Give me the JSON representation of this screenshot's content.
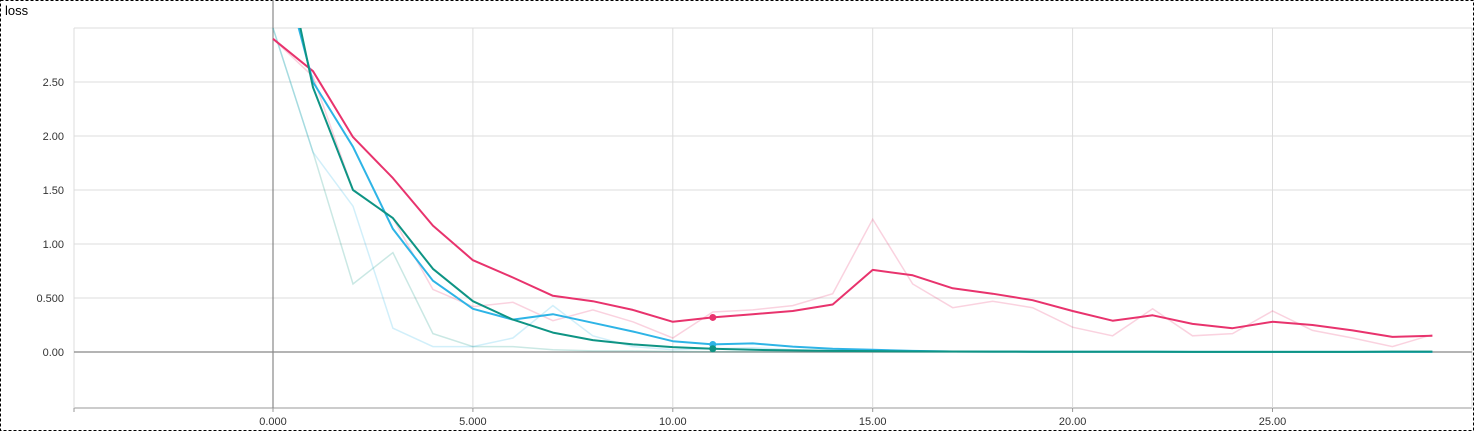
{
  "chart_data": {
    "type": "line",
    "title": "loss",
    "xlabel": "",
    "ylabel": "",
    "xlim": [
      -5,
      30
    ],
    "ylim": [
      -0.5,
      3.0
    ],
    "x_ticks": [
      0,
      5,
      10,
      15,
      20,
      25
    ],
    "x_tick_labels": [
      "0.000",
      "5.000",
      "10.00",
      "15.00",
      "20.00",
      "25.00"
    ],
    "y_ticks": [
      0,
      0.5,
      1.0,
      1.5,
      2.0,
      2.5
    ],
    "y_tick_labels": [
      "0.00",
      "0.500",
      "1.00",
      "1.50",
      "2.00",
      "2.50"
    ],
    "grid": true,
    "hover_x": 11,
    "series": [
      {
        "color": "#e8336d",
        "x": [
          0,
          1,
          2,
          3,
          4,
          5,
          6,
          7,
          8,
          9,
          10,
          11,
          12,
          13,
          14,
          15,
          16,
          17,
          18,
          19,
          20,
          21,
          22,
          23,
          24,
          25,
          26,
          27,
          28,
          29
        ],
        "raw": [
          2.9,
          2.6,
          1.95,
          1.58,
          1.1,
          0.85,
          0.7,
          0.52,
          0.47,
          0.38,
          0.28,
          0.32,
          0.35,
          0.38,
          0.44,
          0.76,
          0.71,
          0.59,
          0.54,
          0.48,
          0.38,
          0.29,
          0.33,
          0.26,
          0.22,
          0.28,
          0.25,
          0.2,
          0.14,
          0.14
        ],
        "smoothed": [
          2.9,
          2.6,
          1.99,
          1.61,
          1.17,
          0.85,
          0.69,
          0.52,
          0.47,
          0.39,
          0.28,
          0.32,
          0.35,
          0.38,
          0.44,
          0.76,
          0.71,
          0.59,
          0.54,
          0.48,
          0.38,
          0.29,
          0.34,
          0.26,
          0.22,
          0.28,
          0.25,
          0.2,
          0.14,
          0.15
        ],
        "values_faded": [
          2.9,
          2.55,
          1.5,
          1.24,
          0.58,
          0.42,
          0.46,
          0.29,
          0.39,
          0.28,
          0.13,
          0.37,
          0.39,
          0.43,
          0.54,
          1.23,
          0.63,
          0.41,
          0.47,
          0.41,
          0.23,
          0.15,
          0.4,
          0.15,
          0.17,
          0.38,
          0.2,
          0.13,
          0.05,
          0.16
        ]
      },
      {
        "color": "#2eb4e6",
        "x": [
          0,
          1,
          2,
          3,
          4,
          5,
          6,
          7,
          8,
          9,
          10,
          11,
          12,
          13,
          14,
          15,
          16,
          17,
          18,
          19,
          20,
          21,
          22,
          23,
          24,
          25,
          26,
          27,
          28,
          29
        ],
        "smoothed": [
          3.9,
          2.5,
          1.9,
          1.14,
          0.66,
          0.4,
          0.3,
          0.35,
          0.27,
          0.19,
          0.1,
          0.07,
          0.08,
          0.05,
          0.03,
          0.02,
          0.01,
          0.005,
          0.004,
          0.003,
          0.002,
          0.002,
          0.002,
          0.001,
          0.001,
          0.001,
          0.001,
          0.001,
          0.001,
          0.001
        ],
        "values_faded": [
          3.0,
          1.85,
          1.35,
          0.22,
          0.05,
          0.05,
          0.13,
          0.43,
          0.15,
          0.05,
          0.02,
          0.03,
          0.04,
          0.02,
          0.01,
          0.01,
          0.005,
          0.003,
          0.002,
          0.002,
          0.001,
          0.001,
          0.001,
          0.001,
          0.001,
          0.001,
          0.001,
          0.001,
          0.001,
          0.001
        ]
      },
      {
        "color": "#0e9484",
        "x": [
          0,
          1,
          2,
          3,
          4,
          5,
          6,
          7,
          8,
          9,
          10,
          11,
          12,
          13,
          14,
          15,
          16,
          17,
          18,
          19,
          20,
          21,
          22,
          23,
          24,
          25,
          26,
          27,
          28,
          29
        ],
        "smoothed": [
          4.2,
          2.45,
          1.5,
          1.24,
          0.77,
          0.47,
          0.3,
          0.18,
          0.11,
          0.07,
          0.045,
          0.03,
          0.02,
          0.015,
          0.01,
          0.008,
          0.006,
          0.005,
          0.004,
          0.003,
          0.002,
          0.002,
          0.002,
          0.001,
          0.001,
          0.001,
          0.001,
          0.001,
          0.004,
          0.004
        ],
        "values_faded": [
          3.0,
          1.85,
          0.63,
          0.92,
          0.17,
          0.05,
          0.05,
          0.02,
          0.01,
          0.01,
          0.005,
          0.003,
          0.002,
          0.002,
          0.001,
          0.001,
          0.001,
          0.001,
          0.001,
          0.001,
          0.001,
          0.001,
          0.001,
          0.001,
          0.001,
          0.001,
          0.001,
          0.001,
          0.001,
          0.001
        ]
      }
    ]
  }
}
